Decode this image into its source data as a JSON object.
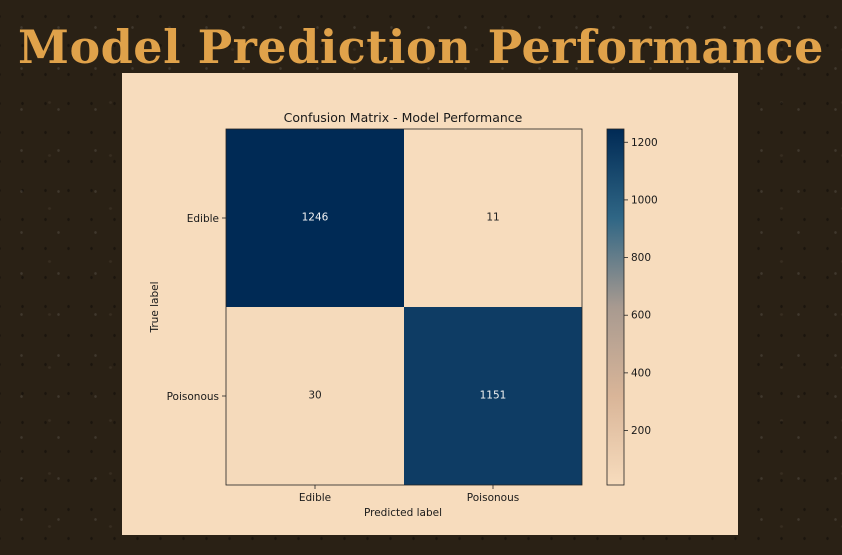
{
  "page": {
    "title": "Model Prediction Performance"
  },
  "colors": {
    "background": "#2a2115",
    "title": "#e0a24a",
    "panel": "#f7dcbd",
    "colormap_low": "#f7dcbd",
    "colormap_mid": "#a89a90",
    "colormap_high": "#002a55"
  },
  "chart_data": {
    "type": "heatmap",
    "title": "Confusion Matrix - Model Performance",
    "xlabel": "Predicted label",
    "ylabel": "True label",
    "x_categories": [
      "Edible",
      "Poisonous"
    ],
    "y_categories": [
      "Edible",
      "Poisonous"
    ],
    "matrix": [
      [
        1246,
        11
      ],
      [
        30,
        1151
      ]
    ],
    "cell_labels": [
      [
        "1246",
        "11"
      ],
      [
        "30",
        "1151"
      ]
    ],
    "colorbar": {
      "ticks": [
        200,
        400,
        600,
        800,
        1000,
        1200
      ],
      "tick_labels": [
        "200",
        "400",
        "600",
        "800",
        "1000",
        "1200"
      ],
      "range": [
        11,
        1246
      ]
    }
  }
}
